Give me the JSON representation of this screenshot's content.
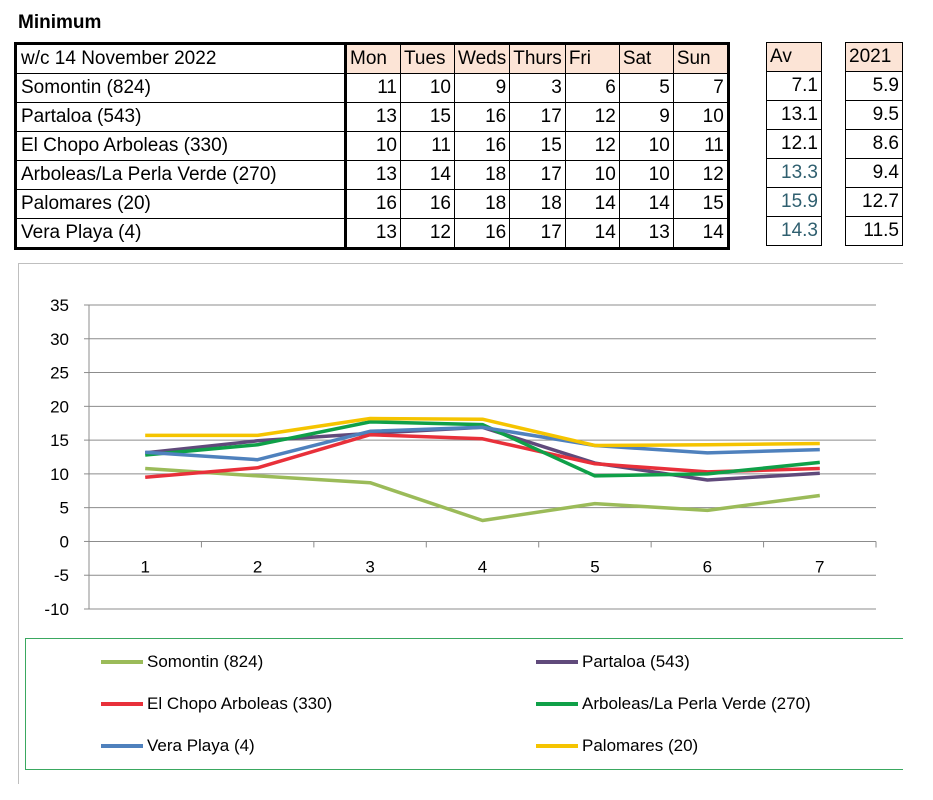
{
  "sheet_title": "Minimum",
  "table": {
    "week_label": "w/c  14 November 2022",
    "days": [
      "Mon",
      "Tues",
      "Weds",
      "Thurs",
      "Fri",
      "Sat",
      "Sun"
    ],
    "av_header": "Av",
    "prev_header": "2021",
    "rows": [
      {
        "name": "Somontin (824)",
        "values": [
          "11",
          "10",
          "9",
          "3",
          "6",
          "5",
          "7"
        ],
        "av": "7.1",
        "prev": "5.9"
      },
      {
        "name": "Partaloa (543)",
        "values": [
          "13",
          "15",
          "16",
          "17",
          "12",
          "9",
          "10"
        ],
        "av": "13.1",
        "prev": "9.5"
      },
      {
        "name": "El Chopo Arboleas (330)",
        "values": [
          "10",
          "11",
          "16",
          "15",
          "12",
          "10",
          "11"
        ],
        "av": "12.1",
        "prev": "8.6"
      },
      {
        "name": "Arboleas/La Perla Verde (270)",
        "values": [
          "13",
          "14",
          "18",
          "17",
          "10",
          "10",
          "12"
        ],
        "av": "13.3",
        "prev": "9.4"
      },
      {
        "name": "Palomares (20)",
        "values": [
          "16",
          "16",
          "18",
          "18",
          "14",
          "14",
          "15"
        ],
        "av": "15.9",
        "prev": "12.7"
      },
      {
        "name": "Vera Playa (4)",
        "values": [
          "13",
          "12",
          "16",
          "17",
          "14",
          "13",
          "14"
        ],
        "av": "14.3",
        "prev": "11.5"
      }
    ]
  },
  "chart_data": {
    "type": "line",
    "title": "",
    "xlabel": "",
    "ylabel": "",
    "categories": [
      "1",
      "2",
      "3",
      "4",
      "5",
      "6",
      "7"
    ],
    "ylim": [
      -10,
      35
    ],
    "yticks": [
      "35",
      "30",
      "25",
      "20",
      "15",
      "10",
      "5",
      "0",
      "-5",
      "-10"
    ],
    "grid": true,
    "series": [
      {
        "name": "Somontin (824)",
        "color": "#9bbb59",
        "values": [
          10.8,
          9.7,
          8.7,
          3.1,
          5.6,
          4.6,
          6.8
        ]
      },
      {
        "name": "Partaloa (543)",
        "color": "#604a7b",
        "values": [
          13.1,
          14.9,
          16.0,
          16.9,
          11.6,
          9.1,
          10.1
        ]
      },
      {
        "name": "El Chopo Arboleas (330)",
        "color": "#e8303a",
        "values": [
          9.5,
          10.9,
          15.8,
          15.2,
          11.5,
          10.3,
          10.8
        ]
      },
      {
        "name": "Arboleas/La Perla Verde (270)",
        "color": "#0fa048",
        "values": [
          12.8,
          14.3,
          17.7,
          17.3,
          9.7,
          10.0,
          11.7
        ]
      },
      {
        "name": "Vera Playa (4)",
        "color": "#4f81bd",
        "values": [
          13.2,
          12.1,
          16.3,
          16.9,
          14.2,
          13.1,
          13.6
        ]
      },
      {
        "name": "Palomares (20)",
        "color": "#f5c400",
        "values": [
          15.7,
          15.7,
          18.2,
          18.1,
          14.2,
          14.3,
          14.5
        ]
      }
    ],
    "legend": [
      {
        "name": "Somontin (824)",
        "color": "#9bbb59"
      },
      {
        "name": "Partaloa (543)",
        "color": "#604a7b"
      },
      {
        "name": "El Chopo Arboleas (330)",
        "color": "#e8303a"
      },
      {
        "name": "Arboleas/La Perla Verde (270)",
        "color": "#0fa048"
      },
      {
        "name": "Vera Playa (4)",
        "color": "#4f81bd"
      },
      {
        "name": "Palomares (20)",
        "color": "#f5c400"
      }
    ]
  }
}
